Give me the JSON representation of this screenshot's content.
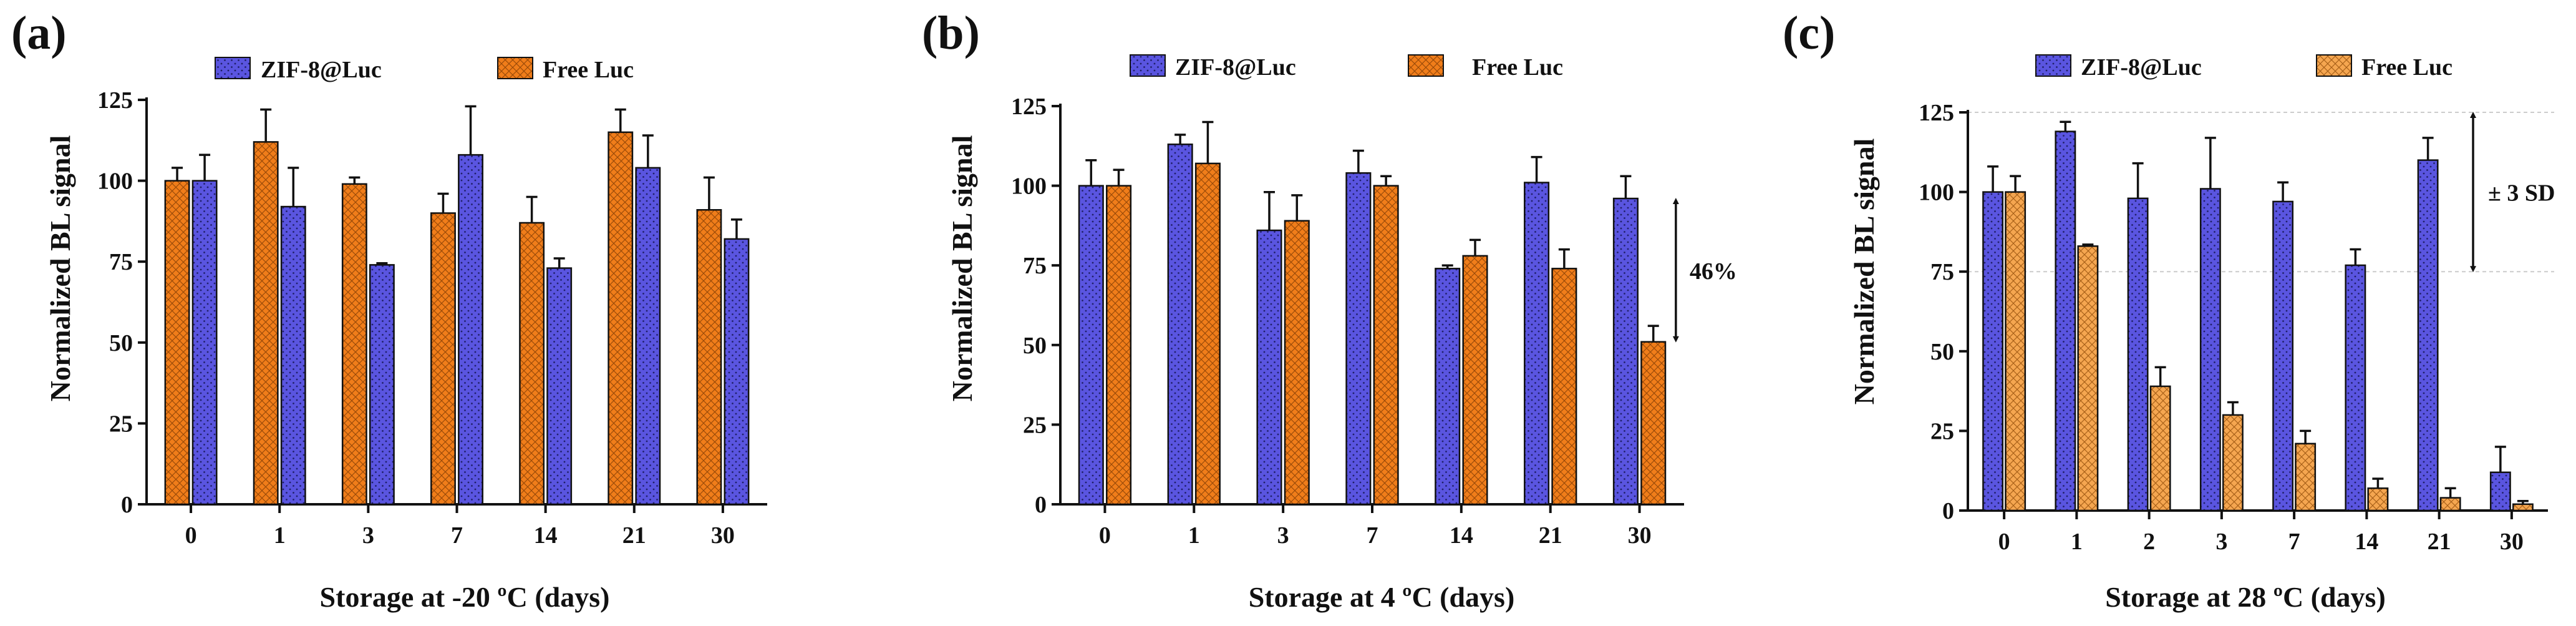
{
  "colors": {
    "zif": "#5a55e0",
    "free_a": "#f07d1a",
    "free_b": "#f07d1a",
    "free_c": "#f5a650",
    "axis": "#111111"
  },
  "chart_data": [
    {
      "panel": "(a)",
      "type": "bar",
      "categories": [
        "0",
        "1",
        "3",
        "7",
        "14",
        "21",
        "30"
      ],
      "series_order": "free-first",
      "series": [
        {
          "name": "ZIF-8@Luc",
          "values": [
            100,
            92,
            74,
            108,
            73,
            104,
            82
          ],
          "errors": [
            8,
            12,
            0.5,
            15,
            3,
            10,
            6
          ]
        },
        {
          "name": "Free Luc",
          "values": [
            100,
            112,
            99,
            90,
            87,
            115,
            91
          ],
          "errors": [
            4,
            10,
            2,
            6,
            8,
            7,
            10
          ]
        }
      ],
      "xlabel": "Storage at -20 ºC (days)",
      "ylabel": "Normalized BL signal",
      "ylim": [
        0,
        125
      ],
      "yticks": [
        "0",
        "25",
        "50",
        "75",
        "100",
        "125"
      ],
      "grid": false,
      "legend": "top"
    },
    {
      "panel": "(b)",
      "type": "bar",
      "categories": [
        "0",
        "1",
        "3",
        "7",
        "14",
        "21",
        "30"
      ],
      "series_order": "zif-first",
      "series": [
        {
          "name": "ZIF-8@Luc",
          "values": [
            100,
            113,
            86,
            104,
            74,
            101,
            96
          ],
          "errors": [
            8,
            3,
            12,
            7,
            1,
            8,
            7
          ]
        },
        {
          "name": "Free Luc",
          "values": [
            100,
            107,
            89,
            100,
            78,
            74,
            51
          ],
          "errors": [
            5,
            13,
            8,
            3,
            5,
            6,
            5
          ]
        }
      ],
      "annotation": "46%",
      "xlabel": "Storage at 4 ºC (days)",
      "ylabel": "Normalized BL signal",
      "ylim": [
        0,
        125
      ],
      "yticks": [
        "0",
        "25",
        "50",
        "75",
        "100",
        "125"
      ],
      "grid": false,
      "legend": "top"
    },
    {
      "panel": "(c)",
      "type": "bar",
      "categories": [
        "0",
        "1",
        "2",
        "3",
        "7",
        "14",
        "21",
        "30"
      ],
      "series_order": "zif-first",
      "series": [
        {
          "name": "ZIF-8@Luc",
          "values": [
            100,
            119,
            98,
            101,
            97,
            77,
            110,
            12
          ],
          "errors": [
            8,
            3,
            11,
            16,
            6,
            5,
            7,
            8
          ]
        },
        {
          "name": "Free Luc",
          "values": [
            100,
            83,
            39,
            30,
            21,
            7,
            4,
            2
          ],
          "errors": [
            5,
            0.5,
            6,
            4,
            4,
            3,
            3,
            1
          ]
        }
      ],
      "annotation": "± 3 SD",
      "reference_lines": [
        125,
        75
      ],
      "xlabel": "Storage at 28 ºC (days)",
      "ylabel": "Normalized BL signal",
      "ylim": [
        0,
        125
      ],
      "yticks": [
        "0",
        "25",
        "50",
        "75",
        "100",
        "125"
      ],
      "grid": false,
      "legend": "top"
    }
  ]
}
